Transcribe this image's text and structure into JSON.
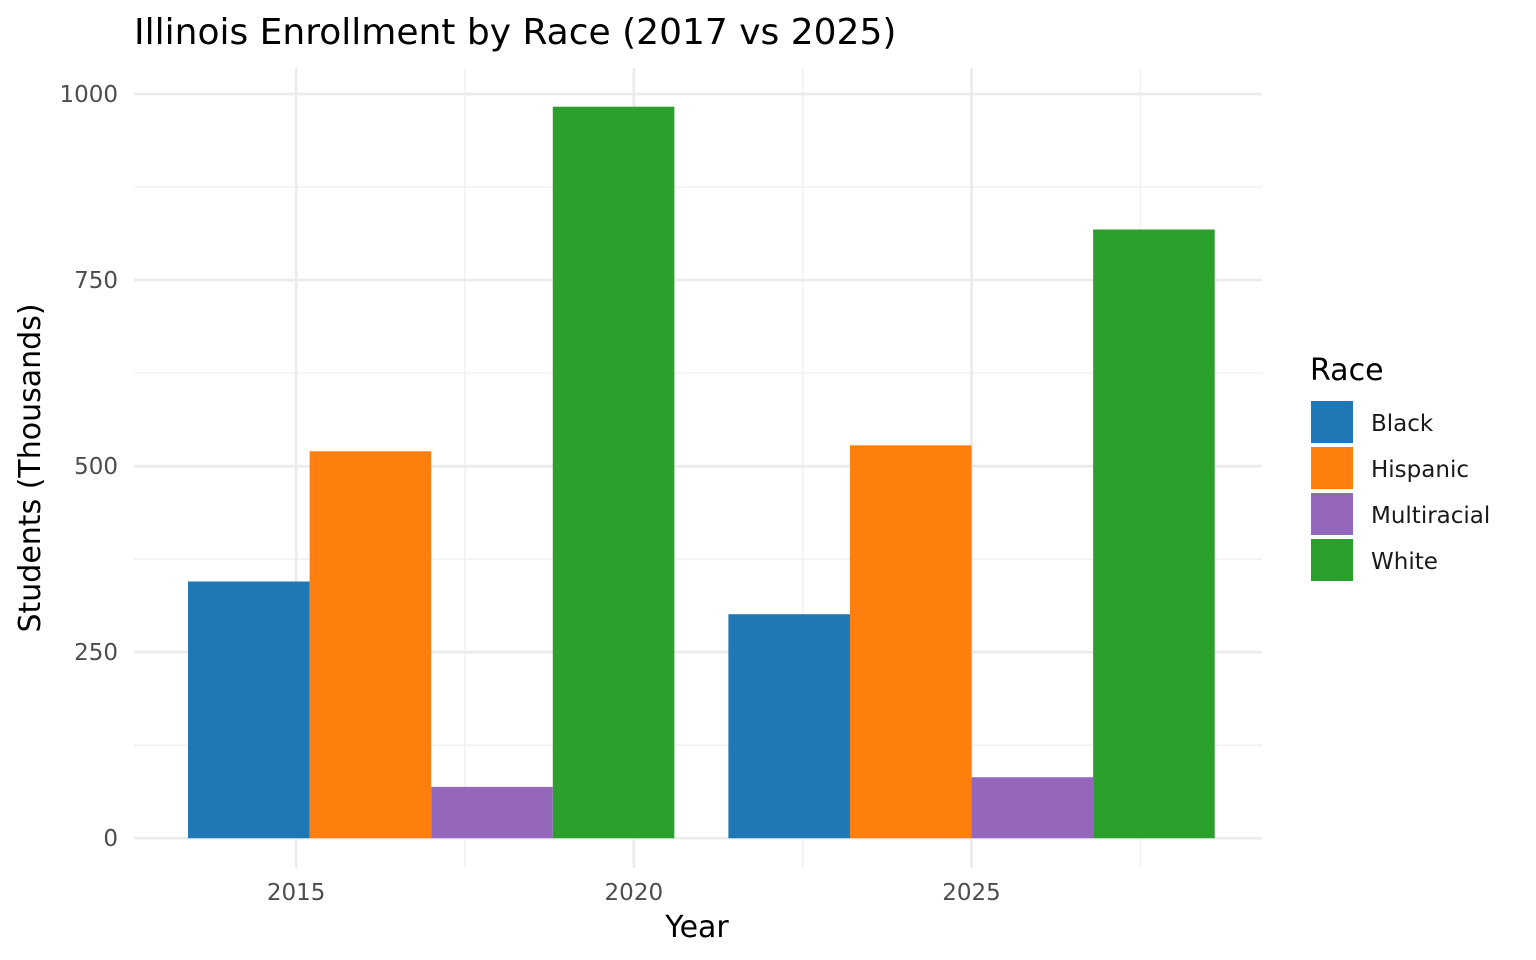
{
  "chart_data": {
    "type": "bar",
    "title": "Illinois Enrollment by Race (2017 vs 2025)",
    "xlabel": "Year",
    "ylabel": "Students (Thousands)",
    "x_ticks": [
      2015,
      2020,
      2025
    ],
    "y_ticks": [
      0,
      250,
      500,
      750,
      1000
    ],
    "xlim": [
      2012.6,
      2029.3
    ],
    "ylim": [
      -40,
      1035
    ],
    "grid": true,
    "legend": {
      "title": "Race",
      "position": "right"
    },
    "categories": [
      2017,
      2025
    ],
    "series": [
      {
        "name": "Black",
        "color": "#1f77b4",
        "values": [
          345,
          301
        ]
      },
      {
        "name": "Hispanic",
        "color": "#ff7f0e",
        "values": [
          520,
          528
        ]
      },
      {
        "name": "Multiracial",
        "color": "#9467bd",
        "values": [
          69,
          82
        ]
      },
      {
        "name": "White",
        "color": "#2ca02c",
        "values": [
          983,
          818
        ]
      }
    ]
  }
}
